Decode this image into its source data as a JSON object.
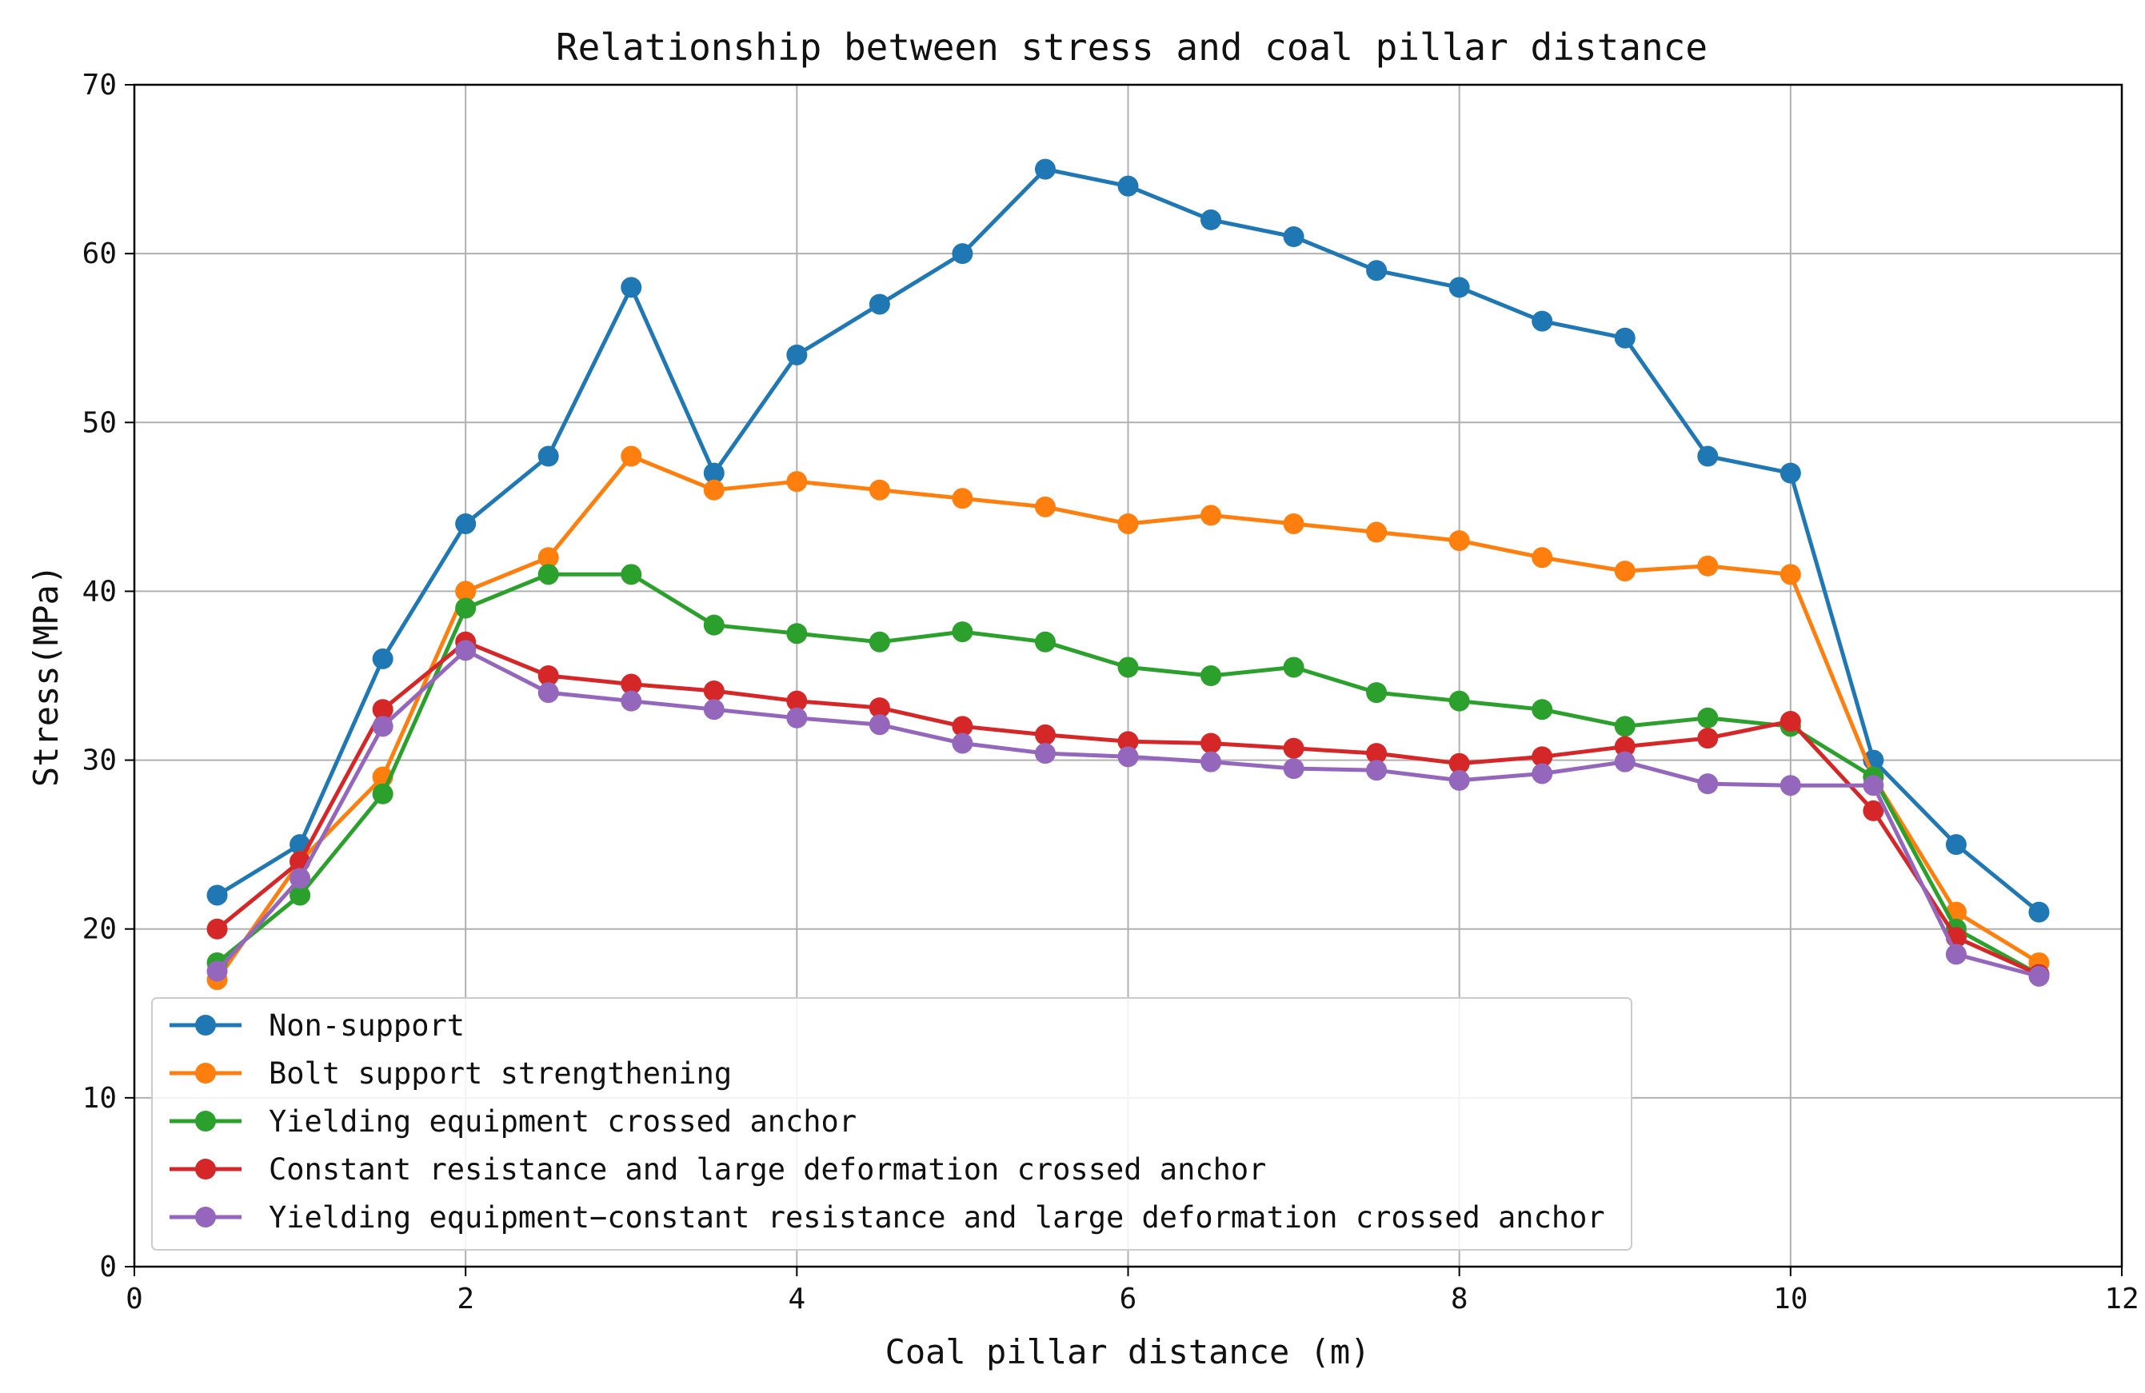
{
  "chart_data": {
    "type": "line",
    "title": "Relationship between stress and coal pillar distance",
    "xlabel": "Coal pillar distance (m)",
    "ylabel": "Stress(MPa)",
    "xlim": [
      0,
      12
    ],
    "ylim": [
      0,
      70
    ],
    "xticks": [
      0,
      2,
      4,
      6,
      8,
      10,
      12
    ],
    "yticks": [
      0,
      10,
      20,
      30,
      40,
      50,
      60,
      70
    ],
    "grid": true,
    "legend_position": "lower-left",
    "x": [
      0.5,
      1,
      1.5,
      2,
      2.5,
      3,
      3.5,
      4,
      4.5,
      5,
      5.5,
      6,
      6.5,
      7,
      7.5,
      8,
      8.5,
      9,
      9.5,
      10,
      10.5,
      11,
      11.5
    ],
    "series": [
      {
        "name": "Non-support",
        "color": "#1f77b4",
        "values": [
          22,
          25,
          36,
          44,
          48,
          58,
          47,
          54,
          57,
          60,
          65,
          64,
          62,
          61,
          59,
          58,
          56,
          55,
          48,
          47,
          30,
          25,
          21
        ]
      },
      {
        "name": "Bolt support strengthening",
        "color": "#ff7f0e",
        "values": [
          17,
          24,
          29,
          40,
          42,
          48,
          46,
          46.5,
          46,
          45.5,
          45,
          44,
          44.5,
          44,
          43.5,
          43,
          42,
          41.2,
          41.5,
          41,
          29,
          21,
          18
        ]
      },
      {
        "name": "Yielding equipment crossed anchor",
        "color": "#2ca02c",
        "values": [
          18,
          22,
          28,
          39,
          41,
          41,
          38,
          37.5,
          37,
          37.6,
          37,
          35.5,
          35,
          35.5,
          34,
          33.5,
          33,
          32,
          32.5,
          32,
          29,
          20,
          17.3
        ]
      },
      {
        "name": "Constant resistance and large deformation crossed anchor",
        "color": "#d62728",
        "values": [
          20,
          24,
          33,
          37,
          35,
          34.5,
          34.1,
          33.5,
          33.1,
          32,
          31.5,
          31.1,
          31,
          30.7,
          30.4,
          29.8,
          30.2,
          30.8,
          31.3,
          32.3,
          27,
          19.5,
          17.3
        ]
      },
      {
        "name": "Yielding equipment−constant resistance and large deformation crossed anchor",
        "color": "#9467bd",
        "values": [
          17.5,
          23,
          32,
          36.5,
          34,
          33.5,
          33,
          32.5,
          32.1,
          31,
          30.4,
          30.2,
          29.9,
          29.5,
          29.4,
          28.8,
          29.2,
          29.9,
          28.6,
          28.5,
          28.5,
          18.5,
          17.2
        ]
      }
    ]
  }
}
